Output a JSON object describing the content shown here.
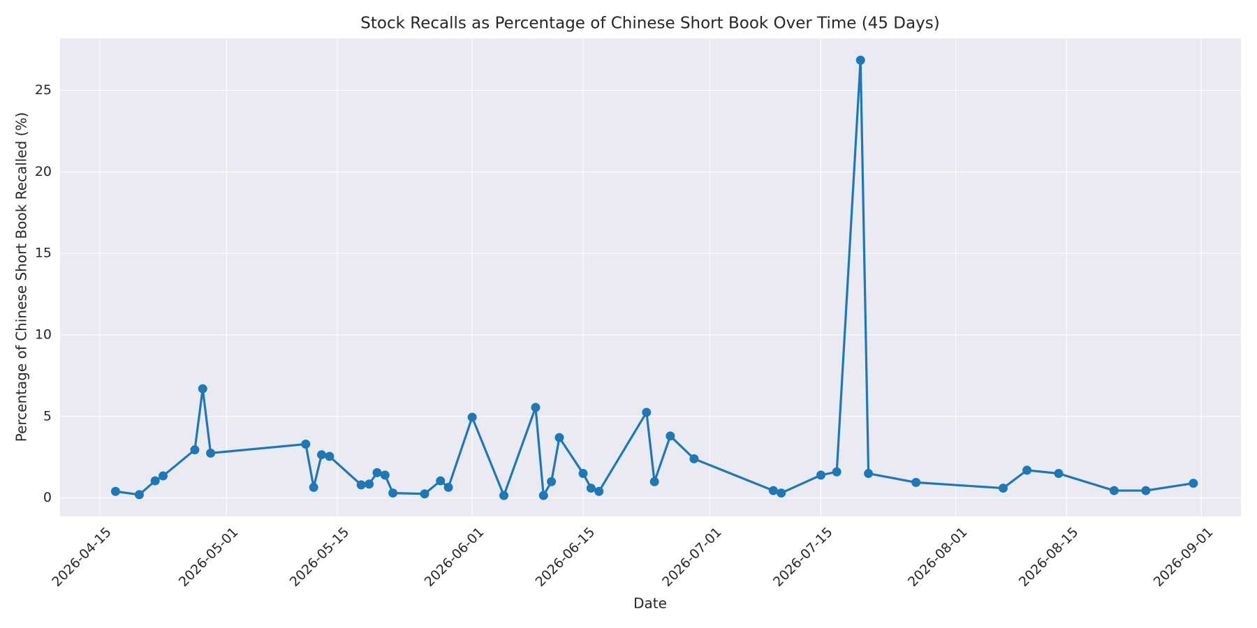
{
  "chart_data": {
    "type": "line",
    "title": "Stock Recalls as Percentage of Chinese Short Book Over Time (45 Days)",
    "x_label": "Date",
    "y_label": "Percentage of Chinese Short Book Recalled (%)",
    "x": [
      "2026-04-17",
      "2026-04-20",
      "2026-04-22",
      "2026-04-23",
      "2026-04-27",
      "2026-04-28",
      "2026-04-29",
      "2026-05-11",
      "2026-05-12",
      "2026-05-13",
      "2026-05-14",
      "2026-05-18",
      "2026-05-19",
      "2026-05-20",
      "2026-05-21",
      "2026-05-22",
      "2026-05-26",
      "2026-05-28",
      "2026-05-29",
      "2026-06-01",
      "2026-06-05",
      "2026-06-09",
      "2026-06-10",
      "2026-06-11",
      "2026-06-12",
      "2026-06-15",
      "2026-06-16",
      "2026-06-17",
      "2026-06-23",
      "2026-06-24",
      "2026-06-26",
      "2026-06-29",
      "2026-07-09",
      "2026-07-10",
      "2026-07-15",
      "2026-07-17",
      "2026-07-20",
      "2026-07-21",
      "2026-07-27",
      "2026-08-07",
      "2026-08-10",
      "2026-08-14",
      "2026-08-21",
      "2026-08-25",
      "2026-08-31"
    ],
    "series": [
      {
        "color": "#1f77b4",
        "values": [
          0.4,
          0.2,
          1.05,
          1.35,
          2.95,
          6.7,
          2.75,
          3.3,
          0.65,
          2.65,
          2.55,
          0.8,
          0.85,
          1.55,
          1.4,
          0.3,
          0.25,
          1.05,
          0.65,
          4.95,
          0.15,
          5.55,
          0.15,
          1.0,
          3.7,
          1.5,
          0.6,
          0.4,
          5.25,
          1.0,
          3.8,
          2.4,
          0.45,
          0.3,
          1.4,
          1.6,
          26.85,
          1.5,
          0.95,
          0.6,
          1.7,
          1.5,
          0.45,
          0.45,
          0.9
        ]
      }
    ],
    "xlim": [
      "2026-04-10",
      "2026-09-06"
    ],
    "xticks": [
      "2026-04-15",
      "2026-05-01",
      "2026-05-15",
      "2026-06-01",
      "2026-06-15",
      "2026-07-01",
      "2026-07-15",
      "2026-08-01",
      "2026-08-15",
      "2026-09-01"
    ],
    "ylim": [
      -1.13,
      28.19
    ],
    "yticks": [
      0,
      5,
      10,
      15,
      20,
      25
    ],
    "grid": true
  }
}
